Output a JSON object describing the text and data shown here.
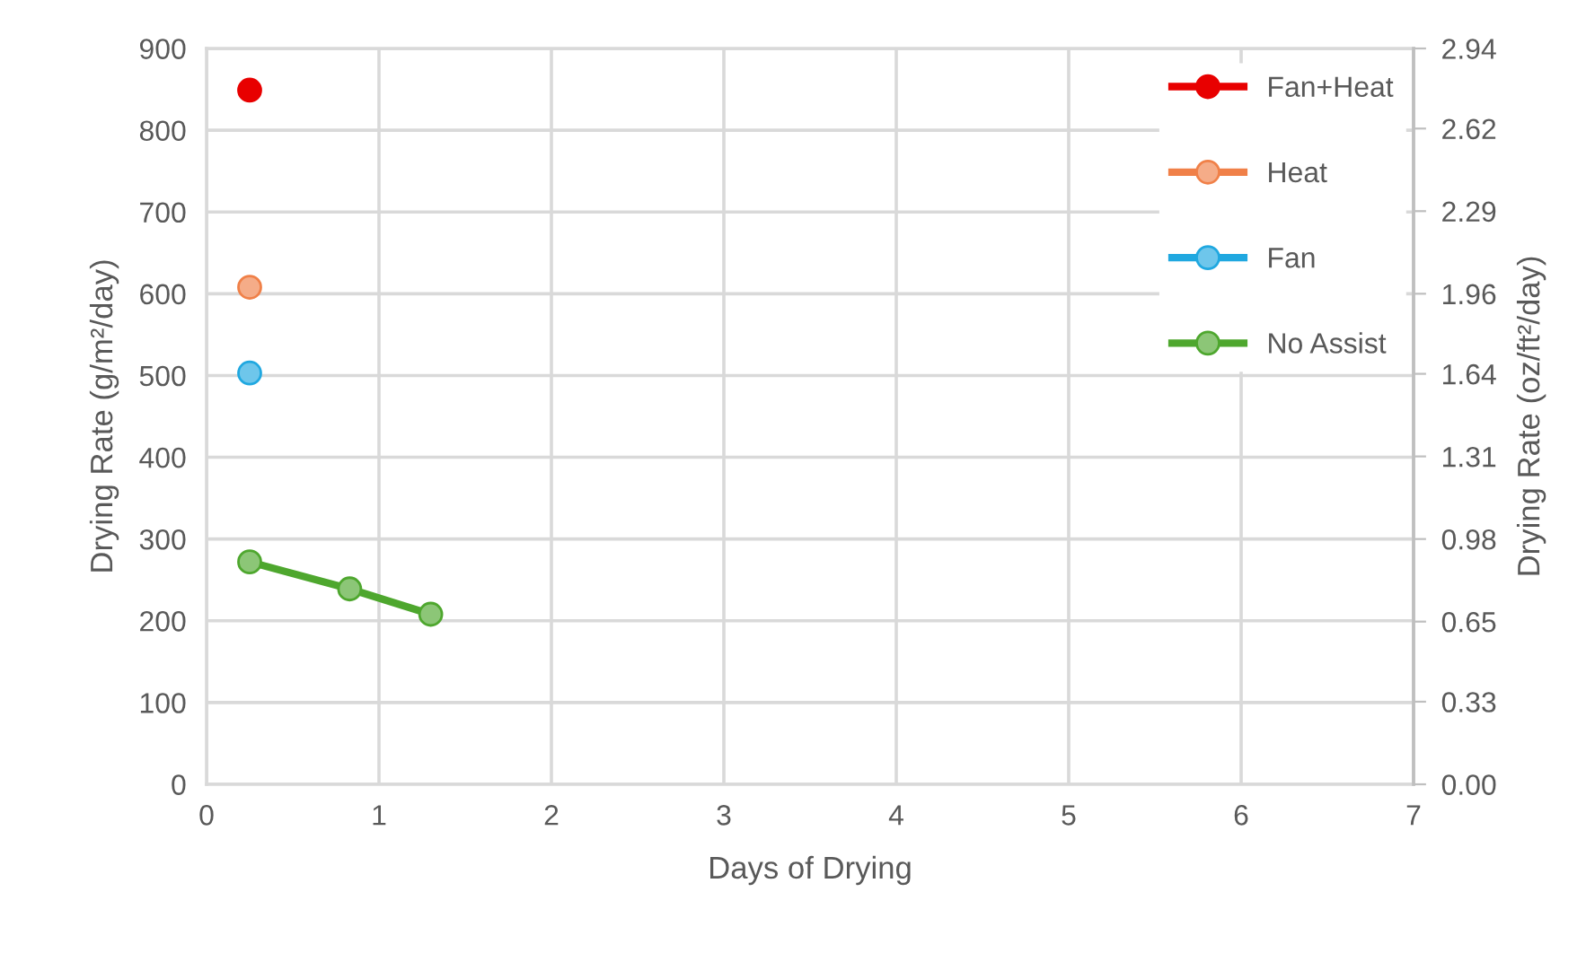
{
  "chart_data": {
    "type": "line",
    "xlabel": "Days of Drying",
    "ylabel": "Drying Rate (g/m²/day)",
    "y2label": "Drying Rate (oz/ft²/day)",
    "series": [
      {
        "name": "Fan+Heat",
        "color": "#e80000",
        "x": [
          0.25
        ],
        "values": [
          849
        ]
      },
      {
        "name": "Heat",
        "color": "#f08048",
        "x": [
          0.25
        ],
        "values": [
          608
        ]
      },
      {
        "name": "Fan",
        "color": "#20a8e0",
        "x": [
          0.25
        ],
        "values": [
          503
        ]
      },
      {
        "name": "No Assist",
        "color": "#4ea72e",
        "x": [
          0.25,
          0.83,
          1.3
        ],
        "values": [
          272,
          239,
          208
        ]
      }
    ],
    "xlim": [
      0,
      7
    ],
    "xticks": [
      0,
      1,
      2,
      3,
      4,
      5,
      6,
      7
    ],
    "ylim": [
      0,
      900
    ],
    "yticks": [
      0,
      100,
      200,
      300,
      400,
      500,
      600,
      700,
      800,
      900
    ],
    "y2lim": [
      0,
      2.94
    ],
    "y2ticks": [
      {
        "value": 0,
        "label": "0.00"
      },
      0.33,
      0.65,
      0.98,
      1.31,
      1.64,
      1.96,
      2.29,
      2.62,
      2.94
    ],
    "grid": true,
    "legend": "right",
    "marker": "circle",
    "line_style": "solid"
  }
}
